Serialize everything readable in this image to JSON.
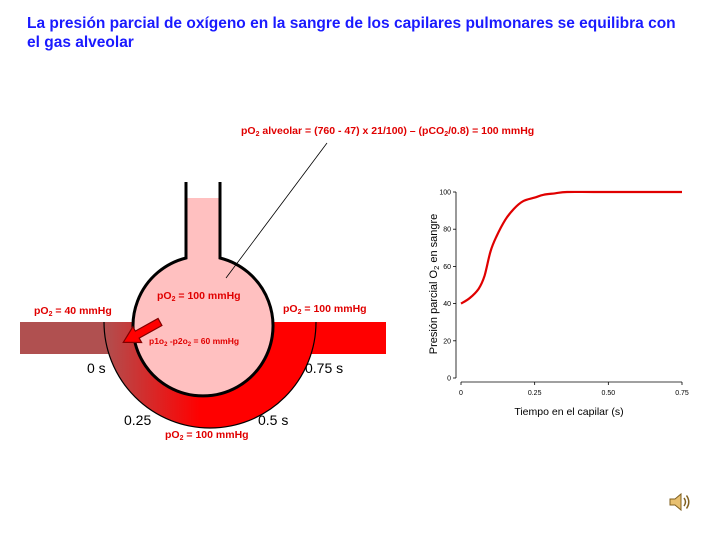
{
  "slide": {
    "title": "La presión parcial de oxígeno en la sangre de los capilares pulmonares se equilibra con el gas alveolar"
  },
  "diagram": {
    "formula": {
      "parts": [
        "pO",
        "2",
        " alveolar = (760  -  47) x  21/100)  –  (pCO",
        "2",
        "/0.8) = 100 mmHg"
      ]
    },
    "alveolus_label": {
      "main": "pO",
      "sub": "2",
      "rest": "  = 100 mmHg"
    },
    "left_label": {
      "main": "pO",
      "sub": "2",
      "rest": "  = 40 mmHg"
    },
    "right_label": {
      "main": "pO",
      "sub": "2",
      "rest": "  = 100 mmHg"
    },
    "bottom_label": {
      "main": "pO",
      "sub": "2",
      "rest": "  = 100 mmHg"
    },
    "gradient_label": {
      "a": "p1o",
      "a_sub": "2",
      "b": " -p2o",
      "b_sub": "2",
      "rest": " = 60 mmHg"
    },
    "times": {
      "t0": "0 s",
      "t025": "0.25",
      "t05": "0.5 s",
      "t075": "0.75 s"
    },
    "colors": {
      "blood": "#ff0000",
      "venous": "#b05050",
      "alveolus": "#ffc0c0",
      "text_red": "#e00000"
    }
  },
  "chart_data": {
    "type": "line",
    "xlabel": "Tiempo en el capilar (s)",
    "ylabel_parts": [
      "Presión parcial O",
      "2",
      " en sangre"
    ],
    "xlim": [
      0,
      0.75
    ],
    "ylim": [
      0,
      100
    ],
    "xticks": [
      "0",
      "0.25",
      "0.50",
      "0.75"
    ],
    "yticks": [
      "0",
      "20",
      "40",
      "60",
      "80",
      "100"
    ],
    "series": [
      {
        "color": "#e00000",
        "x": [
          0,
          0.03,
          0.06,
          0.08,
          0.1,
          0.12,
          0.15,
          0.18,
          0.21,
          0.25,
          0.28,
          0.32,
          0.36,
          0.45,
          0.6,
          0.75
        ],
        "y": [
          40,
          43,
          48,
          55,
          68,
          76,
          85,
          91,
          95,
          97,
          98.5,
          99.3,
          100,
          100,
          100,
          100
        ]
      }
    ]
  },
  "icons": {
    "speaker": "speaker-icon"
  }
}
